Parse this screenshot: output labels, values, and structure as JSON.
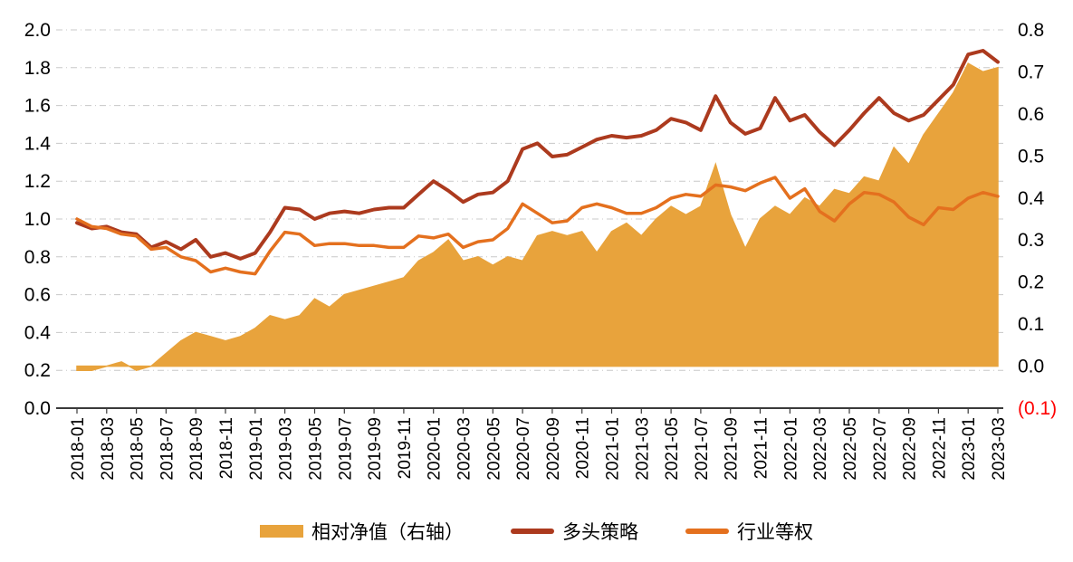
{
  "chart_data": {
    "type": "area",
    "subtype": "combo-area-and-lines",
    "grid": true,
    "grid_color": "#c8c8c8",
    "legend_position": "bottom",
    "axis_text_color": "#000000",
    "negative_label_color": "#ff0000",
    "x": [
      "2018-01",
      "2018-02",
      "2018-03",
      "2018-04",
      "2018-05",
      "2018-06",
      "2018-07",
      "2018-08",
      "2018-09",
      "2018-10",
      "2018-11",
      "2018-12",
      "2019-01",
      "2019-02",
      "2019-03",
      "2019-04",
      "2019-05",
      "2019-06",
      "2019-07",
      "2019-08",
      "2019-09",
      "2019-10",
      "2019-11",
      "2019-12",
      "2020-01",
      "2020-02",
      "2020-03",
      "2020-04",
      "2020-05",
      "2020-06",
      "2020-07",
      "2020-08",
      "2020-09",
      "2020-10",
      "2020-11",
      "2020-12",
      "2021-01",
      "2021-02",
      "2021-03",
      "2021-04",
      "2021-05",
      "2021-06",
      "2021-07",
      "2021-08",
      "2021-09",
      "2021-10",
      "2021-11",
      "2021-12",
      "2022-01",
      "2022-02",
      "2022-03",
      "2022-04",
      "2022-05",
      "2022-06",
      "2022-07",
      "2022-08",
      "2022-09",
      "2022-10",
      "2022-11",
      "2022-12",
      "2023-01",
      "2023-02",
      "2023-03"
    ],
    "x_label_every": 2,
    "left_axis": {
      "min": 0.0,
      "max": 2.0,
      "step": 0.2,
      "tick_labels": [
        "2.0",
        "1.8",
        "1.6",
        "1.4",
        "1.2",
        "1.0",
        "0.8",
        "0.6",
        "0.4",
        "0.2",
        "0.0"
      ]
    },
    "right_axis": {
      "min": -0.1,
      "max": 0.8,
      "step": 0.1,
      "tick_labels": [
        "0.8",
        "0.7",
        "0.6",
        "0.5",
        "0.4",
        "0.3",
        "0.2",
        "0.1",
        "0.0",
        "(0.1)"
      ]
    },
    "series": [
      {
        "name": "相对净值（右轴）",
        "type": "area",
        "axis": "right",
        "color": "#E8A33C",
        "values": [
          -0.01,
          -0.01,
          0.0,
          0.01,
          -0.01,
          0.0,
          0.03,
          0.06,
          0.08,
          0.07,
          0.06,
          0.07,
          0.09,
          0.12,
          0.11,
          0.12,
          0.16,
          0.14,
          0.17,
          0.18,
          0.19,
          0.2,
          0.21,
          0.25,
          0.27,
          0.3,
          0.25,
          0.26,
          0.24,
          0.26,
          0.25,
          0.31,
          0.32,
          0.31,
          0.32,
          0.27,
          0.32,
          0.34,
          0.31,
          0.35,
          0.38,
          0.36,
          0.38,
          0.48,
          0.36,
          0.28,
          0.35,
          0.38,
          0.36,
          0.4,
          0.38,
          0.42,
          0.41,
          0.45,
          0.44,
          0.52,
          0.48,
          0.55,
          0.6,
          0.65,
          0.72,
          0.7,
          0.71
        ]
      },
      {
        "name": "多头策略",
        "type": "line",
        "axis": "left",
        "color": "#AC3A1E",
        "values": [
          0.98,
          0.95,
          0.96,
          0.93,
          0.92,
          0.85,
          0.88,
          0.84,
          0.89,
          0.8,
          0.82,
          0.79,
          0.82,
          0.93,
          1.06,
          1.05,
          1.0,
          1.03,
          1.04,
          1.03,
          1.05,
          1.06,
          1.06,
          1.13,
          1.2,
          1.15,
          1.09,
          1.13,
          1.14,
          1.2,
          1.37,
          1.4,
          1.33,
          1.34,
          1.38,
          1.42,
          1.44,
          1.43,
          1.44,
          1.47,
          1.53,
          1.51,
          1.47,
          1.65,
          1.51,
          1.45,
          1.48,
          1.64,
          1.52,
          1.55,
          1.46,
          1.39,
          1.47,
          1.56,
          1.64,
          1.56,
          1.52,
          1.55,
          1.63,
          1.71,
          1.87,
          1.89,
          1.83
        ]
      },
      {
        "name": "行业等权",
        "type": "line",
        "axis": "left",
        "color": "#E4701E",
        "values": [
          1.0,
          0.96,
          0.95,
          0.92,
          0.91,
          0.84,
          0.85,
          0.8,
          0.78,
          0.72,
          0.74,
          0.72,
          0.71,
          0.83,
          0.93,
          0.92,
          0.86,
          0.87,
          0.87,
          0.86,
          0.86,
          0.85,
          0.85,
          0.91,
          0.9,
          0.92,
          0.85,
          0.88,
          0.89,
          0.95,
          1.08,
          1.03,
          0.98,
          0.99,
          1.06,
          1.08,
          1.06,
          1.03,
          1.03,
          1.06,
          1.11,
          1.13,
          1.12,
          1.18,
          1.17,
          1.15,
          1.19,
          1.22,
          1.11,
          1.16,
          1.04,
          0.99,
          1.08,
          1.14,
          1.13,
          1.09,
          1.01,
          0.97,
          1.06,
          1.05,
          1.11,
          1.14,
          1.12
        ]
      }
    ],
    "legend": [
      "相对净值（右轴）",
      "多头策略",
      "行业等权"
    ]
  }
}
